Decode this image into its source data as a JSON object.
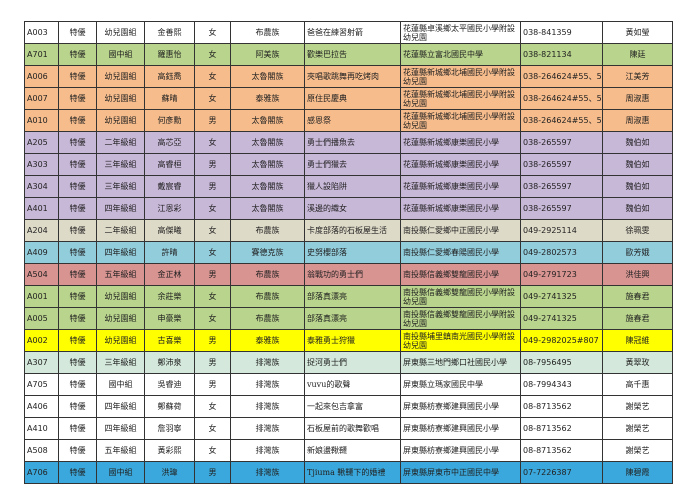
{
  "colors": {
    "white": "#ffffff",
    "green": "#b9d48c",
    "orange": "#f6bc8c",
    "purple": "#c8b8d8",
    "beige": "#dedac8",
    "blue": "#92cddc",
    "red": "#d89491",
    "yellow": "#ffff00",
    "mint": "#d4e8dc",
    "deepblue": "#3aa8dc"
  },
  "rows": [
    {
      "code": "A003",
      "rank": "特優",
      "group": "幼兒園組",
      "name": "金善熙",
      "gender": "女",
      "tribe": "布農族",
      "title": "爸爸在練習射箭",
      "school": "花蓮縣卓溪鄉太平國民小學附設幼兒園",
      "phone": "038-841359",
      "teacher": "黃如瑩",
      "color": "white"
    },
    {
      "code": "A701",
      "rank": "特優",
      "group": "國中組",
      "name": "羅惠怡",
      "gender": "女",
      "tribe": "阿美族",
      "title": "歡樂巴拉告",
      "school": "花蓮縣立富北國民中學",
      "phone": "038-821134",
      "teacher": "陳廷",
      "color": "green"
    },
    {
      "code": "A006",
      "rank": "特優",
      "group": "幼兒園組",
      "name": "高鈺喬",
      "gender": "女",
      "tribe": "太魯閣族",
      "title": "夾唱歌跳舞再吃烤肉",
      "school": "花蓮縣新城鄉北埔國民小學附設幼兒園",
      "phone": "038-264624#55、5",
      "teacher": "江美芳",
      "color": "orange"
    },
    {
      "code": "A007",
      "rank": "特優",
      "group": "幼兒園組",
      "name": "蘇晴",
      "gender": "女",
      "tribe": "泰雅族",
      "title": "原住民慶典",
      "school": "花蓮縣新城鄉北埔國民小學附設幼兒園",
      "phone": "038-264624#55、5",
      "teacher": "周淑惠",
      "color": "orange"
    },
    {
      "code": "A010",
      "rank": "特優",
      "group": "幼兒園組",
      "name": "何彥勳",
      "gender": "男",
      "tribe": "太魯閣族",
      "title": "感恩祭",
      "school": "花蓮縣新城鄉北埔國民小學附設幼兒園",
      "phone": "038-264624#55、5",
      "teacher": "周淑惠",
      "color": "orange"
    },
    {
      "code": "A205",
      "rank": "特優",
      "group": "二年級組",
      "name": "高芯亞",
      "gender": "女",
      "tribe": "太魯閣族",
      "title": "勇士們播魚去",
      "school": "花蓮縣新城鄉康樂國民小學",
      "phone": "038-265597",
      "teacher": "魏伯如",
      "color": "purple"
    },
    {
      "code": "A303",
      "rank": "特優",
      "group": "三年級組",
      "name": "高睿桓",
      "gender": "男",
      "tribe": "太魯閣族",
      "title": "勇士們獵去",
      "school": "花蓮縣新城鄉康樂國民小學",
      "phone": "038-265597",
      "teacher": "魏伯如",
      "color": "purple"
    },
    {
      "code": "A304",
      "rank": "特優",
      "group": "三年級組",
      "name": "戴宸睿",
      "gender": "男",
      "tribe": "太魯閣族",
      "title": "獵人設陷阱",
      "school": "花蓮縣新城鄉康樂國民小學",
      "phone": "038-265597",
      "teacher": "魏伯如",
      "color": "purple"
    },
    {
      "code": "A401",
      "rank": "特優",
      "group": "四年級組",
      "name": "江恩彩",
      "gender": "女",
      "tribe": "太魯閣族",
      "title": "溪邊的織女",
      "school": "花蓮縣新城鄉康樂國民小學",
      "phone": "038-265597",
      "teacher": "魏伯如",
      "color": "purple"
    },
    {
      "code": "A204",
      "rank": "特優",
      "group": "二年級組",
      "name": "高傑曦",
      "gender": "女",
      "tribe": "布農族",
      "title": "卡度部落的石板屋生活",
      "school": "南投縣仁愛鄉中正國民小學",
      "phone": "049-2925114",
      "teacher": "徐珮雯",
      "color": "beige"
    },
    {
      "code": "A409",
      "rank": "特優",
      "group": "四年級組",
      "name": "許晴",
      "gender": "女",
      "tribe": "賽德克族",
      "title": "史努櫻部落",
      "school": "南投縣仁愛鄉春陽國民小學",
      "phone": "049-2802573",
      "teacher": "歐芳娥",
      "color": "blue"
    },
    {
      "code": "A504",
      "rank": "特優",
      "group": "五年級組",
      "name": "金正林",
      "gender": "男",
      "tribe": "布農族",
      "title": "翁戰功的勇士們",
      "school": "南投縣信義鄉雙龍國民小學",
      "phone": "049-2791723",
      "teacher": "洪佳興",
      "color": "red"
    },
    {
      "code": "A001",
      "rank": "特優",
      "group": "幼兒園組",
      "name": "余莊樂",
      "gender": "女",
      "tribe": "布農族",
      "title": "部落真漂亮",
      "school": "南投縣信義鄉雙龍國民小學附設幼兒園",
      "phone": "049-2741325",
      "teacher": "施春君",
      "color": "green"
    },
    {
      "code": "A005",
      "rank": "特優",
      "group": "幼兒園組",
      "name": "申豪樂",
      "gender": "女",
      "tribe": "布農族",
      "title": "部落真漂亮",
      "school": "南投縣信義鄉雙龍國民小學附設幼兒園",
      "phone": "049-2741325",
      "teacher": "施春君",
      "color": "green"
    },
    {
      "code": "A002",
      "rank": "特優",
      "group": "幼兒園組",
      "name": "古喜樂",
      "gender": "男",
      "tribe": "泰雅族",
      "title": "泰雅勇士狩獵",
      "school": "南投縣埔里鎮南光國民小學附設幼兒園",
      "phone": "049-2982025#807",
      "teacher": "陳冠維",
      "color": "yellow"
    },
    {
      "code": "A307",
      "rank": "特優",
      "group": "三年級組",
      "name": "鄭沛泉",
      "gender": "男",
      "tribe": "排灣族",
      "title": "捉河勇士們",
      "school": "屏東縣三地門鄉口社國民小學",
      "phone": "08-7956495",
      "teacher": "黃翠玫",
      "color": "mint"
    },
    {
      "code": "A705",
      "rank": "特優",
      "group": "國中組",
      "name": "吳睿迪",
      "gender": "男",
      "tribe": "排灣族",
      "title": "vuvu的歌聲",
      "school": "屏東縣立瑪家國民中學",
      "phone": "08-7994343",
      "teacher": "高千惠",
      "color": "white"
    },
    {
      "code": "A406",
      "rank": "特優",
      "group": "四年級組",
      "name": "鄭蘇荷",
      "gender": "女",
      "tribe": "排灣族",
      "title": "一起來包吉拿富",
      "school": "屏東縣枋寮鄉建興國民小學",
      "phone": "08-8713562",
      "teacher": "謝榮艺",
      "color": "white"
    },
    {
      "code": "A410",
      "rank": "特優",
      "group": "四年級組",
      "name": "詹羽寧",
      "gender": "女",
      "tribe": "排灣族",
      "title": "石板屋前的歌舞歡唱",
      "school": "屏東縣枋寮鄉建興國民小學",
      "phone": "08-8713562",
      "teacher": "謝榮艺",
      "color": "white"
    },
    {
      "code": "A508",
      "rank": "特優",
      "group": "五年級組",
      "name": "黃彩熙",
      "gender": "女",
      "tribe": "排灣族",
      "title": "新娘盪鞦韆",
      "school": "屏東縣枋寮鄉建興國民小學",
      "phone": "08-8713562",
      "teacher": "謝榮艺",
      "color": "white"
    },
    {
      "code": "A706",
      "rank": "特優",
      "group": "國中組",
      "name": "洪瑋",
      "gender": "男",
      "tribe": "排灣族",
      "title": "Tjiuma 鞦韆下的婚禮",
      "school": "屏東縣屏東市中正國民中學",
      "phone": "07-7226387",
      "teacher": "陳碧霞",
      "color": "deepblue"
    }
  ]
}
